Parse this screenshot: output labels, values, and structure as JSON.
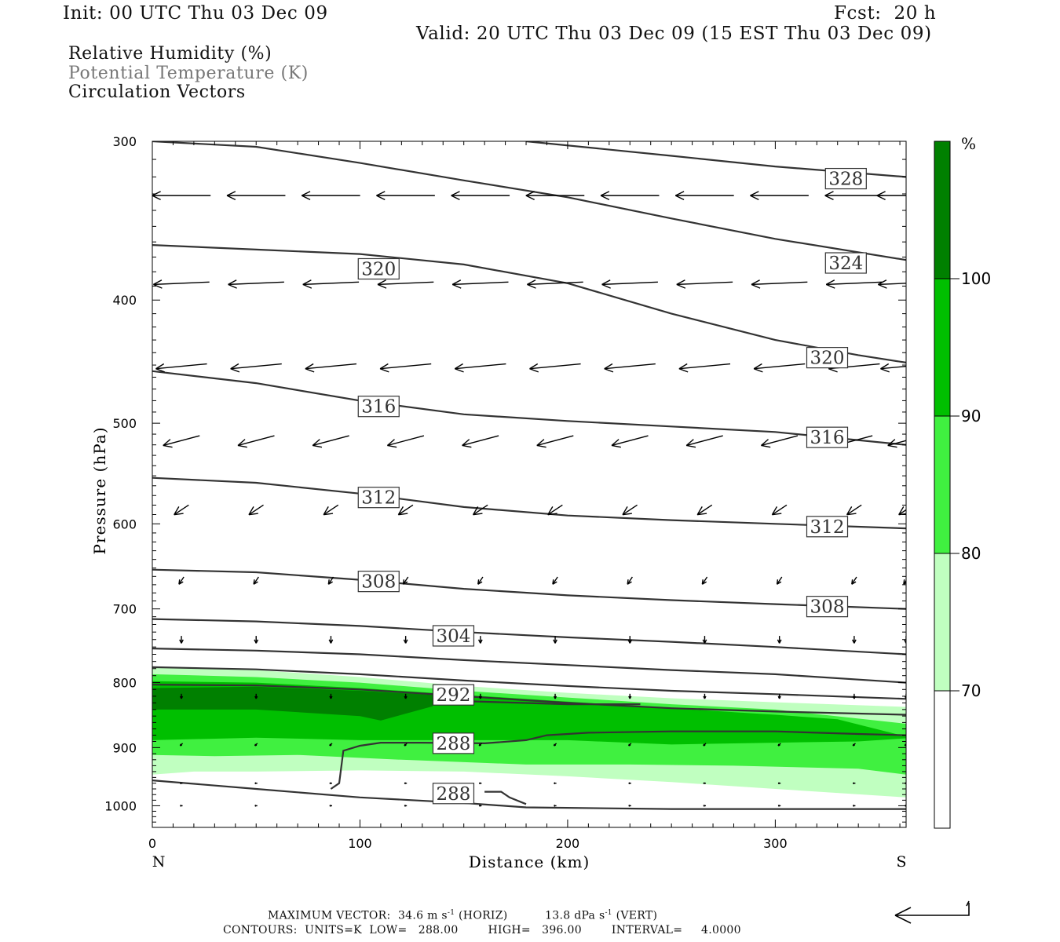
{
  "header": {
    "init": "Init: 00 UTC Thu 03 Dec 09",
    "fcst": "Fcst:  20 h",
    "valid": "Valid: 20 UTC Thu 03 Dec 09 (15 EST Thu 03 Dec 09)"
  },
  "legend_lines": [
    "Relative Humidity (%)",
    "Potential Temperature (K)",
    "Circulation Vectors"
  ],
  "chart_data": {
    "type": "cross-section",
    "ylabel": "Pressure (hPa)",
    "xlabel": "Distance (km)",
    "x_left_label": "N",
    "x_right_label": "S",
    "x_range": [
      0,
      363
    ],
    "y_range_hpa": [
      300,
      1040
    ],
    "y_log_scale": true,
    "x_ticks": [
      0,
      100,
      200,
      300
    ],
    "y_ticks": [
      300,
      400,
      500,
      600,
      700,
      800,
      900,
      1000
    ],
    "colors": {
      "rh_70_80": "#c0ffc0",
      "rh_80_90": "#40f040",
      "rh_90_100": "#00bf00",
      "rh_100": "#008000",
      "contour": "#333333"
    },
    "colorbar": {
      "unit": "%",
      "levels": [
        "70",
        "80",
        "90",
        "100"
      ]
    },
    "rh_bands": [
      {
        "level": "70-80",
        "color": "#c0ffc0",
        "top": [
          [
            0,
            778
          ],
          [
            50,
            782
          ],
          [
            100,
            792
          ],
          [
            150,
            805
          ],
          [
            200,
            815
          ],
          [
            250,
            823
          ],
          [
            300,
            829
          ],
          [
            363,
            836
          ]
        ],
        "bottom": [
          [
            0,
            945
          ],
          [
            20,
            940
          ],
          [
            50,
            940
          ],
          [
            100,
            938
          ],
          [
            150,
            940
          ],
          [
            200,
            948
          ],
          [
            250,
            958
          ],
          [
            300,
            970
          ],
          [
            363,
            985
          ]
        ]
      },
      {
        "level": "80-90",
        "color": "#40f040",
        "top": [
          [
            0,
            788
          ],
          [
            50,
            792
          ],
          [
            100,
            800
          ],
          [
            150,
            812
          ],
          [
            200,
            822
          ],
          [
            250,
            832
          ],
          [
            300,
            840
          ],
          [
            363,
            862
          ]
        ],
        "bottom": [
          [
            0,
            912
          ],
          [
            30,
            914
          ],
          [
            70,
            912
          ],
          [
            120,
            920
          ],
          [
            180,
            928
          ],
          [
            230,
            928
          ],
          [
            280,
            930
          ],
          [
            340,
            935
          ],
          [
            363,
            945
          ]
        ]
      },
      {
        "level": "90-100",
        "color": "#00bf00",
        "top": [
          [
            0,
            798
          ],
          [
            50,
            800
          ],
          [
            100,
            808
          ],
          [
            150,
            818
          ],
          [
            200,
            828
          ],
          [
            250,
            838
          ],
          [
            300,
            848
          ],
          [
            330,
            855
          ],
          [
            363,
            882
          ]
        ],
        "bottom": [
          [
            0,
            888
          ],
          [
            50,
            884
          ],
          [
            100,
            888
          ],
          [
            150,
            888
          ],
          [
            200,
            888
          ],
          [
            250,
            895
          ],
          [
            300,
            892
          ],
          [
            340,
            890
          ],
          [
            363,
            885
          ]
        ]
      },
      {
        "level": "100",
        "color": "#008000",
        "top": [
          [
            0,
            808
          ],
          [
            50,
            806
          ],
          [
            100,
            812
          ],
          [
            135,
            818
          ]
        ],
        "bottom": [
          [
            0,
            840
          ],
          [
            50,
            840
          ],
          [
            100,
            850
          ],
          [
            110,
            857
          ],
          [
            135,
            835
          ]
        ]
      }
    ],
    "theta_contours": [
      {
        "value": "328",
        "points": [
          [
            180,
            300
          ],
          [
            250,
            308
          ],
          [
            300,
            314
          ],
          [
            363,
            320
          ]
        ]
      },
      {
        "value": "324",
        "points": [
          [
            0,
            300
          ],
          [
            50,
            303
          ],
          [
            100,
            312
          ],
          [
            150,
            322
          ],
          [
            200,
            332
          ],
          [
            250,
            345
          ],
          [
            300,
            358
          ],
          [
            363,
            372
          ]
        ]
      },
      {
        "value": "320",
        "points": [
          [
            0,
            362
          ],
          [
            50,
            365
          ],
          [
            100,
            368
          ],
          [
            150,
            375
          ],
          [
            200,
            388
          ],
          [
            250,
            410
          ],
          [
            300,
            430
          ],
          [
            340,
            442
          ],
          [
            363,
            448
          ]
        ]
      },
      {
        "value": "316",
        "points": [
          [
            0,
            455
          ],
          [
            50,
            465
          ],
          [
            100,
            480
          ],
          [
            150,
            492
          ],
          [
            200,
            498
          ],
          [
            250,
            503
          ],
          [
            300,
            508
          ],
          [
            363,
            520
          ]
        ]
      },
      {
        "value": "312",
        "points": [
          [
            0,
            552
          ],
          [
            50,
            557
          ],
          [
            100,
            568
          ],
          [
            150,
            582
          ],
          [
            200,
            591
          ],
          [
            250,
            596
          ],
          [
            300,
            600
          ],
          [
            363,
            605
          ]
        ]
      },
      {
        "value": "308",
        "points": [
          [
            0,
            652
          ],
          [
            50,
            655
          ],
          [
            100,
            664
          ],
          [
            150,
            675
          ],
          [
            200,
            683
          ],
          [
            250,
            689
          ],
          [
            300,
            694
          ],
          [
            363,
            700
          ]
        ]
      },
      {
        "value": "304",
        "points": [
          [
            0,
            713
          ],
          [
            50,
            716
          ],
          [
            100,
            722
          ],
          [
            150,
            730
          ],
          [
            200,
            737
          ],
          [
            250,
            743
          ],
          [
            300,
            750
          ],
          [
            363,
            760
          ]
        ]
      },
      {
        "value": "300",
        "points": [
          [
            0,
            752
          ],
          [
            50,
            755
          ],
          [
            100,
            760
          ],
          [
            150,
            768
          ],
          [
            200,
            775
          ],
          [
            250,
            782
          ],
          [
            300,
            788
          ],
          [
            363,
            800
          ]
        ]
      },
      {
        "value": "296",
        "points": [
          [
            0,
            778
          ],
          [
            50,
            781
          ],
          [
            100,
            788
          ],
          [
            150,
            797
          ],
          [
            200,
            805
          ],
          [
            250,
            812
          ],
          [
            300,
            817
          ],
          [
            363,
            824
          ]
        ]
      },
      {
        "value": "292",
        "points": [
          [
            0,
            803
          ],
          [
            50,
            804
          ],
          [
            100,
            810
          ],
          [
            150,
            820
          ],
          [
            200,
            830
          ],
          [
            250,
            838
          ],
          [
            300,
            843
          ],
          [
            363,
            848
          ]
        ]
      },
      {
        "value": "288",
        "points": [
          [
            86,
            970
          ],
          [
            90,
            960
          ],
          [
            92,
            905
          ],
          [
            100,
            897
          ],
          [
            110,
            892
          ],
          [
            130,
            892
          ],
          [
            160,
            893
          ],
          [
            180,
            888
          ],
          [
            190,
            880
          ],
          [
            210,
            876
          ],
          [
            250,
            874
          ],
          [
            300,
            874
          ],
          [
            340,
            878
          ],
          [
            363,
            880
          ]
        ]
      },
      {
        "value": "",
        "points": [
          [
            0,
            955
          ],
          [
            50,
            970
          ],
          [
            100,
            985
          ],
          [
            150,
            995
          ],
          [
            180,
            1003
          ],
          [
            250,
            1006
          ],
          [
            300,
            1006
          ],
          [
            363,
            1006
          ]
        ]
      },
      {
        "value": "",
        "points": [
          [
            135,
            826
          ],
          [
            200,
            832
          ],
          [
            235,
            832
          ]
        ]
      },
      {
        "value": "288",
        "points": [
          [
            160,
            975
          ],
          [
            168,
            975
          ],
          [
            172,
            985
          ],
          [
            180,
            997
          ]
        ]
      }
    ],
    "contour_labels": [
      {
        "text": "328",
        "x": 334,
        "p": 321
      },
      {
        "text": "324",
        "x": 334,
        "p": 374
      },
      {
        "text": "320",
        "x": 109,
        "p": 378
      },
      {
        "text": "320",
        "x": 325,
        "p": 444
      },
      {
        "text": "316",
        "x": 109,
        "p": 485
      },
      {
        "text": "316",
        "x": 325,
        "p": 513
      },
      {
        "text": "312",
        "x": 109,
        "p": 572
      },
      {
        "text": "312",
        "x": 325,
        "p": 603
      },
      {
        "text": "308",
        "x": 109,
        "p": 666
      },
      {
        "text": "308",
        "x": 325,
        "p": 697
      },
      {
        "text": "304",
        "x": 145,
        "p": 735
      },
      {
        "text": "292",
        "x": 145,
        "p": 818
      },
      {
        "text": "288",
        "x": 145,
        "p": 893
      },
      {
        "text": "288",
        "x": 145,
        "p": 978
      }
    ],
    "vector_rows": [
      {
        "p": 331,
        "u": -24,
        "v": 0
      },
      {
        "p": 388,
        "u": -23,
        "v": 1
      },
      {
        "p": 451,
        "u": -21,
        "v": 2
      },
      {
        "p": 516,
        "u": -15,
        "v": 4
      },
      {
        "p": 585,
        "u": -6,
        "v": 4
      },
      {
        "p": 665,
        "u": -2,
        "v": 3
      },
      {
        "p": 740,
        "u": 0,
        "v": 3
      },
      {
        "p": 820,
        "u": 0,
        "v": 2
      },
      {
        "p": 895,
        "u": -1,
        "v": 1
      },
      {
        "p": 960,
        "u": -1,
        "v": 0
      },
      {
        "p": 1000,
        "u": -1,
        "v": 0
      }
    ],
    "vector_columns_km": [
      14,
      50,
      86,
      122,
      158,
      194,
      230,
      266,
      302,
      338,
      363
    ]
  },
  "footer": {
    "max_vector": "MAXIMUM VECTOR:  34.6 m s",
    "horiz": " (HORIZ)",
    "vert_val": "13.8 dPa s",
    "vert": " (VERT)",
    "sup": "-1",
    "contours": "CONTOURS:  UNITS=K  LOW=   288.00        HIGH=   396.00        INTERVAL=     4.0000"
  }
}
